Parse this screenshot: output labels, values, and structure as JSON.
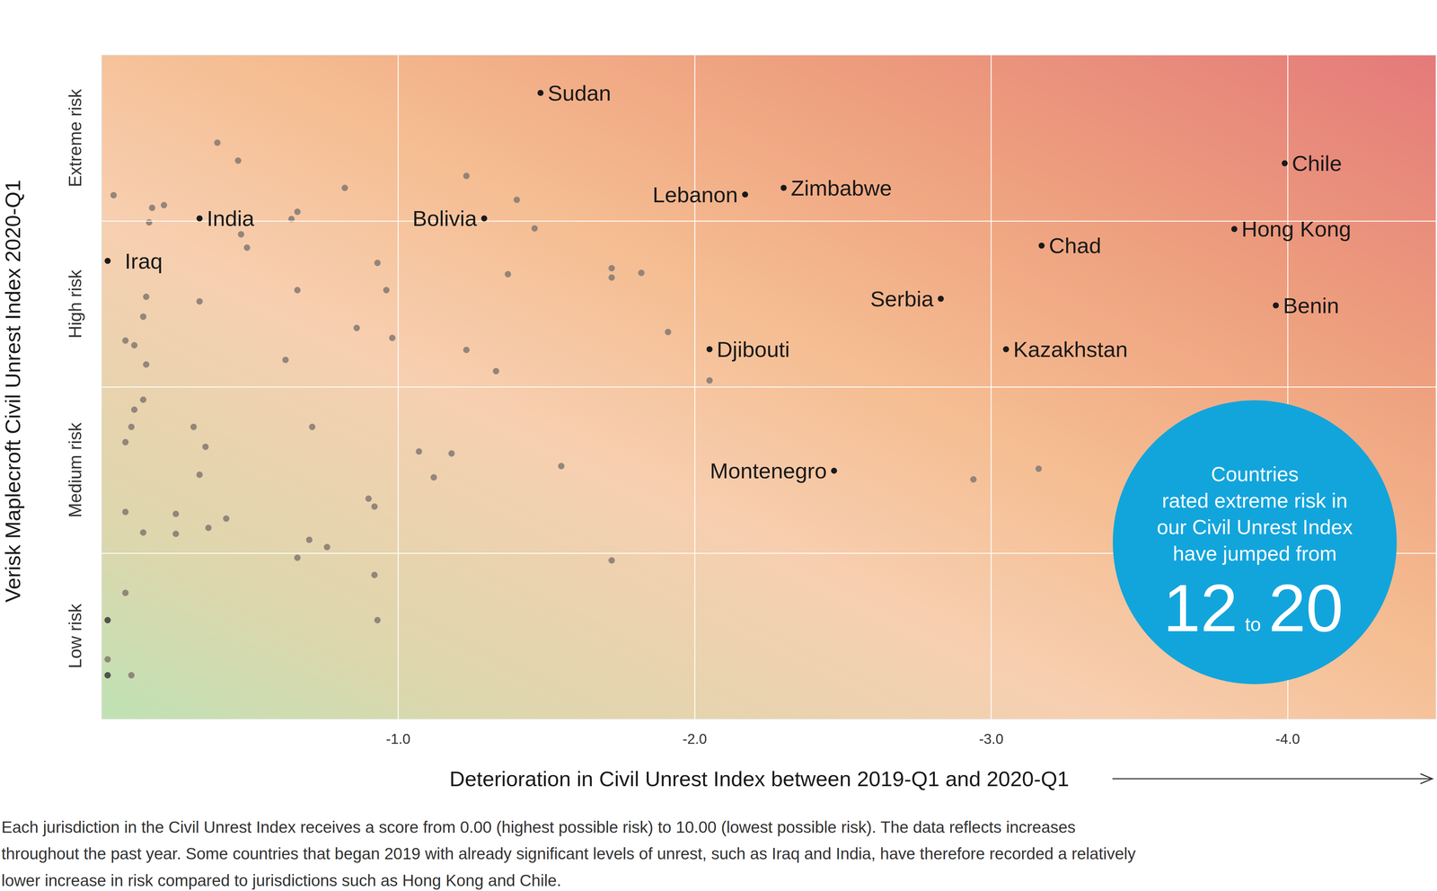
{
  "chart_data": {
    "type": "scatter",
    "xlabel": "Deterioration in Civil Unrest Index between 2019-Q1 and 2020-Q1",
    "ylabel": "Verisk Maplecroft Civil Unrest Index 2020-Q1",
    "xlim": [
      0,
      -4.5
    ],
    "xticks": [
      {
        "value": -1,
        "label": "-1.0"
      },
      {
        "value": -2,
        "label": "-2.0"
      },
      {
        "value": -3,
        "label": "-3.0"
      },
      {
        "value": -4,
        "label": "-4.0"
      }
    ],
    "ylim": [
      10,
      0
    ],
    "yticks": [
      {
        "value": 8.75,
        "label": "Low risk"
      },
      {
        "value": 6.25,
        "label": "Medium risk"
      },
      {
        "value": 3.75,
        "label": "High risk"
      },
      {
        "value": 1.25,
        "label": "Extreme risk"
      }
    ],
    "grid": true,
    "series": [
      {
        "color": "#444444",
        "marker": "circle",
        "x": [
          -0.02,
          -0.02
        ],
        "y": [
          8.51,
          9.34
        ]
      },
      {
        "color": "#8a7d74",
        "marker": "circle",
        "x": [
          -0.04,
          -0.39,
          -0.46,
          -0.17,
          -0.21,
          -0.16,
          -0.66,
          -0.64,
          -0.82,
          -1.23,
          -1.4,
          -1.46,
          -0.47,
          -0.49,
          -0.93,
          -0.96,
          -1.37,
          -1.72,
          -1.72,
          -1.82,
          -0.66,
          -0.15,
          -0.33,
          -0.14,
          -0.08,
          -0.11,
          -0.15,
          -0.62,
          -0.86,
          -0.98,
          -1.23,
          -1.33,
          -1.91,
          -2.05,
          -0.14,
          -0.11,
          -0.1,
          -0.08,
          -0.31,
          -0.35,
          -0.33,
          -0.71,
          -1.07,
          -1.18,
          -1.12,
          -1.55,
          -2.94,
          -3.16,
          -0.08,
          -0.25,
          -0.14,
          -0.25,
          -0.36,
          -0.42,
          -0.9,
          -0.92,
          -0.7,
          -0.76,
          -0.66,
          -1.72,
          -0.92,
          -0.08,
          -0.93,
          -0.1,
          -0.02
        ],
        "y": [
          2.11,
          1.32,
          1.59,
          2.3,
          2.26,
          2.52,
          2.36,
          2.47,
          2.0,
          1.82,
          2.18,
          2.61,
          2.7,
          2.9,
          3.13,
          3.54,
          3.3,
          3.21,
          3.35,
          3.28,
          3.54,
          3.64,
          3.71,
          3.94,
          4.3,
          4.37,
          4.66,
          4.59,
          4.11,
          4.26,
          4.44,
          4.76,
          4.17,
          4.9,
          5.19,
          5.34,
          5.6,
          5.83,
          5.6,
          5.9,
          6.32,
          5.6,
          5.97,
          6.0,
          6.36,
          6.19,
          6.39,
          6.23,
          6.88,
          6.91,
          7.19,
          7.21,
          7.12,
          6.98,
          6.68,
          6.8,
          7.3,
          7.41,
          7.57,
          7.61,
          7.83,
          8.1,
          8.51,
          9.34,
          9.1
        ]
      },
      {
        "color": "#1a1a1a",
        "marker": "circle",
        "labels": [
          "Sudan",
          "Chile",
          "Hong Kong",
          "Benin",
          "Lebanon",
          "Zimbabwe",
          "India",
          "Bolivia",
          "Iraq",
          "Chad",
          "Serbia",
          "Djibouti",
          "Kazakhstan",
          "Montenegro"
        ],
        "x": [
          -1.48,
          -3.99,
          -3.82,
          -3.96,
          -2.17,
          -2.3,
          -0.33,
          -1.29,
          -0.02,
          -3.17,
          -2.83,
          -2.05,
          -3.05,
          -2.47
        ],
        "y": [
          0.57,
          1.63,
          2.62,
          3.77,
          2.1,
          2.0,
          2.46,
          2.46,
          3.1,
          2.87,
          3.67,
          4.43,
          4.43,
          6.26
        ]
      }
    ],
    "annotations": [
      {
        "text": [
          "Countries",
          "rated extreme risk in",
          "our Civil Unrest Index",
          "have jumped from"
        ],
        "from": 12,
        "connector": "to",
        "to": 20,
        "color": "#12a5dc"
      }
    ],
    "caption": [
      "Each jurisdiction in the Civil Unrest Index receives a score from 0.00 (highest possible risk) to 10.00 (lowest possible risk). The data reflects increases",
      "throughout the past year. Some countries that began 2019 with already significant levels of unrest, such as Iraq and India, have therefore recorded a relatively",
      "lower increase in risk compared to jurisdictions such as Hong Kong and Chile."
    ]
  }
}
